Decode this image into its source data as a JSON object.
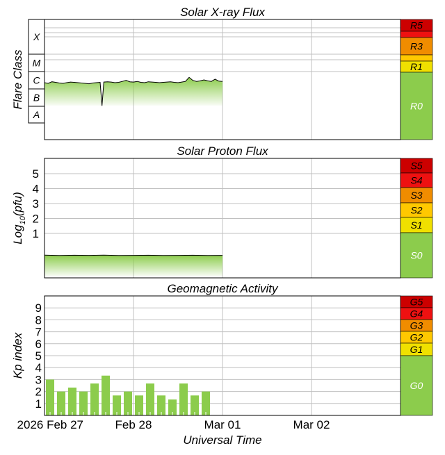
{
  "colors": {
    "fill_green": "#8ccc4c",
    "scale_red_dark": "#cc0000",
    "scale_red": "#ee1111",
    "scale_orange": "#f08c00",
    "scale_amber": "#ffc800",
    "scale_yellow": "#f0e000",
    "scale_green": "#8ccc4c",
    "grid": "#c0c0c0",
    "frame": "#000000"
  },
  "time_axis": {
    "label": "Universal Time",
    "ticks": [
      "2026 Feb 27",
      "Feb 28",
      "Mar 01",
      "Mar 02"
    ]
  },
  "chart_data": [
    {
      "type": "area",
      "title": "Solar X-ray Flux",
      "ylabel": "Flare Class",
      "y_scale": "log",
      "ylim": [
        1e-09,
        0.01
      ],
      "class_labels": [
        "X",
        "M",
        "C",
        "B",
        "A"
      ],
      "scale": [
        {
          "label": "R5",
          "color": "#cc0000"
        },
        {
          "label": "",
          "color": "#ee1111"
        },
        {
          "label": "R3",
          "color": "#f08c00"
        },
        {
          "label": "",
          "color": "#ffc800"
        },
        {
          "label": "R1",
          "color": "#f0e000"
        },
        {
          "label": "R0",
          "color": "#8ccc4c"
        }
      ],
      "x_hours": [
        0,
        1,
        2,
        3,
        4,
        5,
        6,
        7,
        8,
        9,
        10,
        11,
        12,
        13,
        14,
        15,
        15.5,
        16,
        17,
        18,
        19,
        20,
        21,
        22,
        23,
        24,
        25,
        26,
        27,
        28,
        29,
        30,
        31,
        32,
        33,
        34,
        35,
        36,
        37,
        38,
        39,
        40,
        41,
        42,
        43,
        44,
        45,
        46,
        47,
        48
      ],
      "values": [
        2.2e-06,
        2e-06,
        2.5e-06,
        2.3e-06,
        2.1e-06,
        2e-06,
        2.2e-06,
        2.4e-06,
        2.3e-06,
        2.2e-06,
        2.1e-06,
        2e-06,
        1.9e-06,
        2.1e-06,
        2.2e-06,
        2.3e-06,
        1e-07,
        2.4e-06,
        2.5e-06,
        2.4e-06,
        2.2e-06,
        2.3e-06,
        2.6e-06,
        3e-06,
        2.5e-06,
        2.4e-06,
        2.6e-06,
        2.3e-06,
        2.2e-06,
        2.5e-06,
        2.4e-06,
        2.3e-06,
        2.2e-06,
        2.3e-06,
        2.4e-06,
        2.5e-06,
        2.3e-06,
        2.2e-06,
        2.4e-06,
        2.6e-06,
        4.5e-06,
        3e-06,
        2.6e-06,
        2.8e-06,
        3.2e-06,
        2.8e-06,
        2.6e-06,
        3.5e-06,
        2.7e-06,
        2.6e-06
      ]
    },
    {
      "type": "area",
      "title": "Solar Proton Flux",
      "ylabel": "Log",
      "ylabel_sub": "10",
      "ylabel_tail": "(pfu)",
      "y_scale": "log",
      "ylim": [
        -1.7,
        6
      ],
      "yticks": [
        "1",
        "2",
        "3",
        "4",
        "5"
      ],
      "scale": [
        {
          "label": "S5",
          "color": "#cc0000"
        },
        {
          "label": "S4",
          "color": "#ee1111"
        },
        {
          "label": "S3",
          "color": "#f08c00"
        },
        {
          "label": "S2",
          "color": "#ffc800"
        },
        {
          "label": "S1",
          "color": "#f0e000"
        },
        {
          "label": "S0",
          "color": "#8ccc4c"
        }
      ],
      "x_hours": [
        0,
        4,
        8,
        12,
        16,
        20,
        24,
        28,
        32,
        36,
        40,
        44,
        48
      ],
      "values": [
        -0.45,
        -0.48,
        -0.46,
        -0.47,
        -0.45,
        -0.48,
        -0.47,
        -0.46,
        -0.48,
        -0.47,
        -0.46,
        -0.48,
        -0.47
      ]
    },
    {
      "type": "bar",
      "title": "Geomagnetic Activity",
      "ylabel": "Kp index",
      "ylim": [
        0,
        10
      ],
      "yticks": [
        "1",
        "2",
        "3",
        "4",
        "5",
        "6",
        "7",
        "8",
        "9"
      ],
      "scale": [
        {
          "label": "G5",
          "color": "#cc0000"
        },
        {
          "label": "G4",
          "color": "#ee1111"
        },
        {
          "label": "G3",
          "color": "#f08c00"
        },
        {
          "label": "G2",
          "color": "#ffc800"
        },
        {
          "label": "G1",
          "color": "#f0e000"
        },
        {
          "label": "G0",
          "color": "#8ccc4c"
        }
      ],
      "bar_hours": 3,
      "values": [
        3.0,
        2.0,
        2.33,
        2.0,
        2.67,
        3.33,
        1.67,
        2.0,
        1.67,
        2.67,
        1.67,
        1.33,
        2.67,
        1.67,
        2.0
      ]
    }
  ]
}
